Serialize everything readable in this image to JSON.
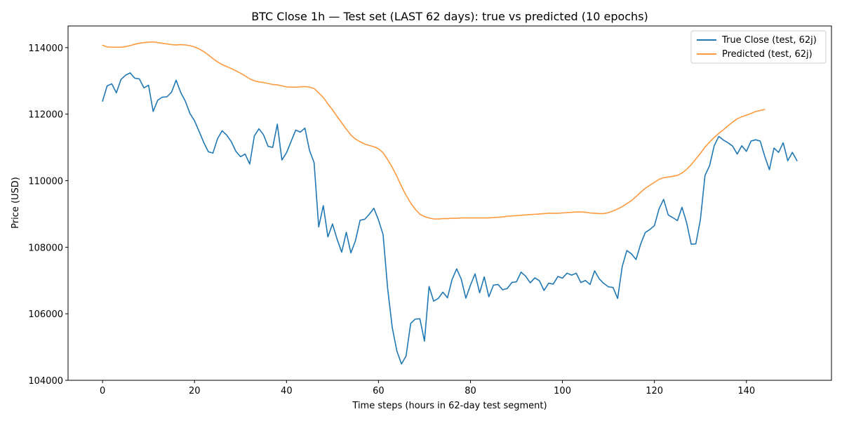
{
  "chart_data": {
    "type": "line",
    "title": "BTC Close 1h — Test set (LAST 62 days): true vs predicted (10 epochs)",
    "xlabel": "Time steps (hours in 62-day test segment)",
    "ylabel": "Price (USD)",
    "xlim": [
      -7.5,
      158.5
    ],
    "ylim": [
      104000,
      114650
    ],
    "xticks": [
      0,
      20,
      40,
      60,
      80,
      100,
      120,
      140
    ],
    "yticks": [
      104000,
      106000,
      108000,
      110000,
      112000,
      114000
    ],
    "grid": false,
    "legend_position": "top-right",
    "series": [
      {
        "name": "True Close (test, 62j)",
        "color": "#1f77b4",
        "values": [
          112390,
          112850,
          112910,
          112640,
          113040,
          113170,
          113240,
          113080,
          113060,
          112790,
          112870,
          112080,
          112420,
          112510,
          112520,
          112660,
          113020,
          112650,
          112390,
          112020,
          111800,
          111480,
          111150,
          110870,
          110830,
          111260,
          111500,
          111370,
          111170,
          110880,
          110720,
          110800,
          110500,
          111340,
          111560,
          111380,
          111030,
          111000,
          111700,
          110620,
          110840,
          111180,
          111520,
          111460,
          111580,
          110910,
          110540,
          108610,
          109250,
          108310,
          108700,
          108240,
          107850,
          108450,
          107830,
          108200,
          108810,
          108840,
          108990,
          109170,
          108820,
          108380,
          106750,
          105580,
          104880,
          104490,
          104730,
          105710,
          105840,
          105850,
          105180,
          106820,
          106380,
          106460,
          106650,
          106480,
          107030,
          107350,
          107040,
          106470,
          106860,
          107200,
          106630,
          107110,
          106510,
          106860,
          106880,
          106720,
          106760,
          106940,
          106960,
          107250,
          107130,
          106930,
          107080,
          106990,
          106700,
          106920,
          106890,
          107120,
          107070,
          107220,
          107160,
          107220,
          106940,
          107000,
          106880,
          107290,
          107050,
          106910,
          106810,
          106790,
          106460,
          107420,
          107900,
          107800,
          107630,
          108090,
          108440,
          108530,
          108650,
          109150,
          109440,
          108970,
          108890,
          108800,
          109200,
          108740,
          108090,
          108100,
          108830,
          110160,
          110450,
          111050,
          111330,
          111220,
          111140,
          111040,
          110800,
          111050,
          110880,
          111190,
          111230,
          111190,
          110730,
          110330,
          110980,
          110850,
          111140,
          110600,
          110850,
          110600
        ]
      },
      {
        "name": "Predicted (test, 62j)",
        "color": "#ff993e",
        "values": [
          114070,
          114020,
          114010,
          114010,
          114010,
          114030,
          114060,
          114100,
          114130,
          114150,
          114160,
          114170,
          114150,
          114130,
          114110,
          114090,
          114080,
          114090,
          114080,
          114060,
          114020,
          113960,
          113880,
          113780,
          113670,
          113570,
          113490,
          113430,
          113370,
          113300,
          113230,
          113150,
          113060,
          113000,
          112970,
          112950,
          112920,
          112890,
          112880,
          112850,
          112820,
          112810,
          112810,
          112820,
          112830,
          112810,
          112770,
          112640,
          112500,
          112310,
          112130,
          111930,
          111740,
          111550,
          111370,
          111250,
          111170,
          111100,
          111060,
          111020,
          110960,
          110840,
          110630,
          110400,
          110130,
          109830,
          109560,
          109330,
          109140,
          108990,
          108920,
          108880,
          108850,
          108850,
          108860,
          108860,
          108870,
          108870,
          108880,
          108880,
          108880,
          108880,
          108880,
          108880,
          108880,
          108890,
          108900,
          108910,
          108930,
          108940,
          108950,
          108960,
          108970,
          108980,
          108990,
          109000,
          109010,
          109020,
          109020,
          109020,
          109030,
          109040,
          109050,
          109060,
          109060,
          109050,
          109030,
          109020,
          109010,
          109010,
          109040,
          109090,
          109150,
          109220,
          109310,
          109400,
          109520,
          109650,
          109770,
          109860,
          109950,
          110040,
          110090,
          110110,
          110130,
          110160,
          110230,
          110340,
          110480,
          110650,
          110820,
          111010,
          111160,
          111300,
          111420,
          111530,
          111650,
          111760,
          111860,
          111920,
          111970,
          112020,
          112080,
          112110,
          112140
        ]
      }
    ]
  }
}
